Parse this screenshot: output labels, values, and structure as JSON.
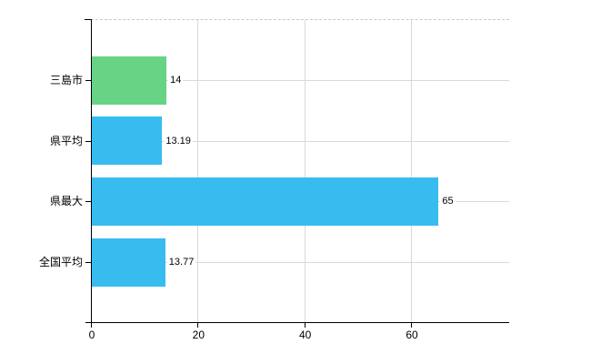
{
  "chart_data": {
    "type": "bar",
    "orientation": "horizontal",
    "categories": [
      "三島市",
      "県平均",
      "県最大",
      "全国平均"
    ],
    "values": [
      14,
      13.19,
      65,
      13.77
    ],
    "value_labels": [
      "14",
      "13.19",
      "65",
      "13.77"
    ],
    "bar_colors": [
      "#66d385",
      "#38bcf0",
      "#38bcf0",
      "#38bcf0"
    ],
    "x_ticks": [
      0,
      20,
      40,
      60
    ],
    "x_tick_labels": [
      "0",
      "20",
      "40",
      "60"
    ],
    "xlim": [
      0,
      78.4
    ],
    "grid": true,
    "legend": "none"
  },
  "colors": {
    "background": "#ffffff",
    "bar_green": "#66d385",
    "bar_blue": "#38bcf0",
    "gridline": "#d9d9d9",
    "plot_top_border": "#c9c9c9",
    "axis": "#000000",
    "text": "#000000"
  }
}
